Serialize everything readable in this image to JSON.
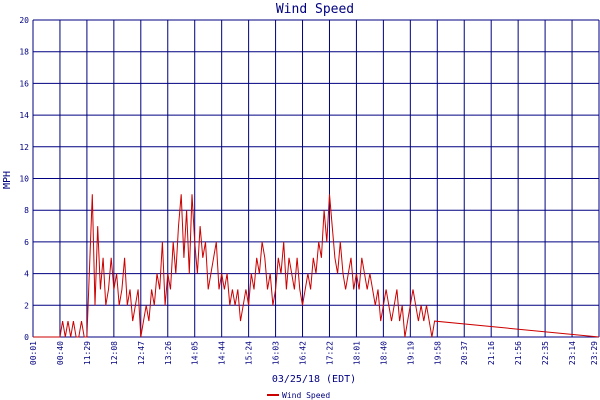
{
  "chart_data": {
    "type": "line",
    "title": "Wind Speed",
    "xlabel": "03/25/18 (EDT)",
    "ylabel": "MPH",
    "ylim": [
      0,
      20
    ],
    "yticks": [
      "0",
      "2",
      "4",
      "6",
      "8",
      "10",
      "12",
      "14",
      "16",
      "18",
      "20"
    ],
    "xticks": [
      "00:01",
      "00:40",
      "11:29",
      "12:08",
      "12:47",
      "13:26",
      "14:05",
      "14:44",
      "15:24",
      "16:03",
      "16:42",
      "17:22",
      "18:01",
      "18:40",
      "19:19",
      "19:58",
      "20:37",
      "21:16",
      "21:56",
      "22:35",
      "23:14",
      "23:29"
    ],
    "grid": true,
    "legend_position": "bottom",
    "colors": {
      "series": "#cc0000",
      "grid": "#000080",
      "text": "#000080"
    },
    "series": [
      {
        "name": "Wind Speed",
        "points": [
          [
            0,
            0
          ],
          [
            1,
            0
          ],
          [
            1.1,
            1
          ],
          [
            1.2,
            0
          ],
          [
            1.3,
            1
          ],
          [
            1.4,
            0
          ],
          [
            1.5,
            1
          ],
          [
            1.6,
            0
          ],
          [
            1.7,
            0
          ],
          [
            1.8,
            1
          ],
          [
            1.9,
            0
          ],
          [
            2,
            0
          ],
          [
            2.2,
            9
          ],
          [
            2.3,
            2
          ],
          [
            2.4,
            7
          ],
          [
            2.5,
            3
          ],
          [
            2.6,
            5
          ],
          [
            2.7,
            2
          ],
          [
            2.8,
            3
          ],
          [
            2.9,
            5
          ],
          [
            3,
            3
          ],
          [
            3.1,
            4
          ],
          [
            3.2,
            2
          ],
          [
            3.3,
            3
          ],
          [
            3.4,
            5
          ],
          [
            3.5,
            2
          ],
          [
            3.6,
            3
          ],
          [
            3.7,
            1
          ],
          [
            3.8,
            2
          ],
          [
            3.9,
            3
          ],
          [
            4,
            0
          ],
          [
            4.1,
            1
          ],
          [
            4.2,
            2
          ],
          [
            4.3,
            1
          ],
          [
            4.4,
            3
          ],
          [
            4.5,
            2
          ],
          [
            4.6,
            4
          ],
          [
            4.7,
            3
          ],
          [
            4.8,
            6
          ],
          [
            4.9,
            2
          ],
          [
            5,
            4
          ],
          [
            5.1,
            3
          ],
          [
            5.2,
            6
          ],
          [
            5.3,
            4
          ],
          [
            5.4,
            7
          ],
          [
            5.5,
            9
          ],
          [
            5.6,
            5
          ],
          [
            5.7,
            8
          ],
          [
            5.8,
            4
          ],
          [
            5.9,
            9
          ],
          [
            6,
            6
          ],
          [
            6.1,
            4
          ],
          [
            6.2,
            7
          ],
          [
            6.3,
            5
          ],
          [
            6.4,
            6
          ],
          [
            6.5,
            3
          ],
          [
            6.6,
            4
          ],
          [
            6.7,
            5
          ],
          [
            6.8,
            6
          ],
          [
            6.9,
            3
          ],
          [
            7,
            4
          ],
          [
            7.1,
            3
          ],
          [
            7.2,
            4
          ],
          [
            7.3,
            2
          ],
          [
            7.4,
            3
          ],
          [
            7.5,
            2
          ],
          [
            7.6,
            3
          ],
          [
            7.7,
            1
          ],
          [
            7.8,
            2
          ],
          [
            7.9,
            3
          ],
          [
            8,
            2
          ],
          [
            8.1,
            4
          ],
          [
            8.2,
            3
          ],
          [
            8.3,
            5
          ],
          [
            8.4,
            4
          ],
          [
            8.5,
            6
          ],
          [
            8.6,
            5
          ],
          [
            8.7,
            3
          ],
          [
            8.8,
            4
          ],
          [
            8.9,
            2
          ],
          [
            9,
            3
          ],
          [
            9.1,
            5
          ],
          [
            9.2,
            4
          ],
          [
            9.3,
            6
          ],
          [
            9.4,
            3
          ],
          [
            9.5,
            5
          ],
          [
            9.6,
            4
          ],
          [
            9.7,
            3
          ],
          [
            9.8,
            5
          ],
          [
            9.9,
            3
          ],
          [
            10,
            2
          ],
          [
            10.1,
            3
          ],
          [
            10.2,
            4
          ],
          [
            10.3,
            3
          ],
          [
            10.4,
            5
          ],
          [
            10.5,
            4
          ],
          [
            10.6,
            6
          ],
          [
            10.7,
            5
          ],
          [
            10.8,
            8
          ],
          [
            10.9,
            6
          ],
          [
            11,
            9
          ],
          [
            11.1,
            7
          ],
          [
            11.2,
            5
          ],
          [
            11.3,
            4
          ],
          [
            11.4,
            6
          ],
          [
            11.5,
            4
          ],
          [
            11.6,
            3
          ],
          [
            11.7,
            4
          ],
          [
            11.8,
            5
          ],
          [
            11.9,
            3
          ],
          [
            12,
            4
          ],
          [
            12.1,
            3
          ],
          [
            12.2,
            5
          ],
          [
            12.3,
            4
          ],
          [
            12.4,
            3
          ],
          [
            12.5,
            4
          ],
          [
            12.6,
            3
          ],
          [
            12.7,
            2
          ],
          [
            12.8,
            3
          ],
          [
            12.9,
            1
          ],
          [
            13,
            2
          ],
          [
            13.1,
            3
          ],
          [
            13.2,
            2
          ],
          [
            13.3,
            1
          ],
          [
            13.4,
            2
          ],
          [
            13.5,
            3
          ],
          [
            13.6,
            1
          ],
          [
            13.7,
            2
          ],
          [
            13.8,
            0
          ],
          [
            13.9,
            1
          ],
          [
            14,
            2
          ],
          [
            14.1,
            3
          ],
          [
            14.2,
            2
          ],
          [
            14.3,
            1
          ],
          [
            14.4,
            2
          ],
          [
            14.5,
            1
          ],
          [
            14.6,
            2
          ],
          [
            14.7,
            1
          ],
          [
            14.8,
            0
          ],
          [
            14.9,
            1
          ]
        ]
      }
    ]
  }
}
